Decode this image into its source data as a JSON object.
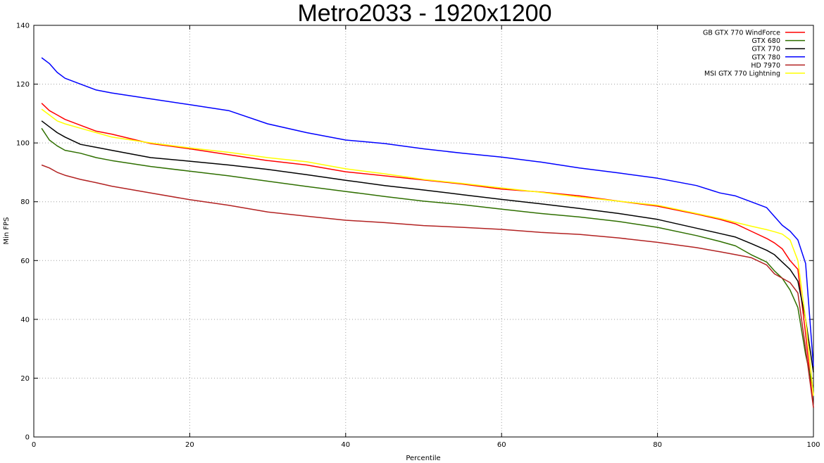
{
  "chart_data": {
    "type": "line",
    "title": "Metro2033 - 1920x1200",
    "xlabel": "Percentile",
    "ylabel": "Min FPS",
    "xlim": [
      0,
      100
    ],
    "ylim": [
      0,
      140
    ],
    "xticks": [
      0,
      20,
      40,
      60,
      80,
      100
    ],
    "yticks": [
      0,
      20,
      40,
      60,
      80,
      100,
      120,
      140
    ],
    "grid": true,
    "legend_position": "top-right",
    "x": [
      1,
      2,
      3,
      4,
      6,
      8,
      10,
      15,
      20,
      25,
      30,
      35,
      40,
      45,
      50,
      55,
      60,
      65,
      70,
      75,
      80,
      85,
      88,
      90,
      92,
      94,
      95,
      96,
      97,
      98,
      99,
      100
    ],
    "series": [
      {
        "name": "GB GTX 770 WindForce",
        "color": "#ff0000",
        "values": [
          113.5,
          111,
          109.5,
          108,
          106,
          104,
          103,
          99.8,
          98,
          96,
          94,
          92.5,
          90.2,
          88.8,
          87.4,
          86,
          84.3,
          83.3,
          82,
          80.2,
          78.5,
          75.8,
          74,
          72.5,
          70,
          67.5,
          66,
          64,
          60,
          57,
          35,
          10
        ]
      },
      {
        "name": "GTX 680",
        "color": "#2f6f00",
        "values": [
          105,
          101,
          99,
          97.5,
          96.5,
          95,
          94,
          92,
          90.4,
          88.8,
          87,
          85.2,
          83.5,
          81.8,
          80.2,
          79,
          77.5,
          76,
          74.8,
          73.3,
          71.3,
          68.5,
          66.5,
          65,
          62,
          59.5,
          56.5,
          54,
          50,
          44,
          28,
          16
        ]
      },
      {
        "name": "GTX 770",
        "color": "#000000",
        "values": [
          107.5,
          105.5,
          103.5,
          102,
          99.5,
          98.5,
          97.5,
          95,
          93.8,
          92.5,
          91,
          89.2,
          87.3,
          85.5,
          84,
          82.4,
          80.8,
          79.3,
          77.7,
          76,
          74,
          71,
          69.2,
          68,
          65.8,
          63.5,
          62,
          59.5,
          57,
          53,
          40,
          22
        ]
      },
      {
        "name": "GTX 780",
        "color": "#0000ff",
        "values": [
          129,
          127,
          124,
          122,
          120,
          118,
          117,
          115,
          113,
          111,
          106.5,
          103.5,
          101,
          99.8,
          98,
          96.5,
          95.2,
          93.5,
          91.5,
          89.8,
          88,
          85.5,
          83,
          82,
          80,
          78,
          75,
          72,
          70,
          67,
          59,
          24
        ]
      },
      {
        "name": "HD 7970",
        "color": "#b22222",
        "values": [
          92.5,
          91.5,
          90,
          89,
          87.6,
          86.5,
          85.3,
          83,
          80.7,
          78.8,
          76.5,
          75.1,
          73.7,
          72.9,
          71.9,
          71.3,
          70.6,
          69.6,
          68.9,
          67.7,
          66.2,
          64.4,
          63,
          62,
          61,
          58.5,
          55.5,
          54,
          52.5,
          49,
          30,
          10
        ]
      },
      {
        "name": "MSI GTX 770 Lightning",
        "color": "#ffff00",
        "values": [
          111.5,
          109.5,
          107.5,
          106.5,
          105,
          103.5,
          102,
          100,
          98.3,
          96.8,
          95,
          93.6,
          91.2,
          89.5,
          87.6,
          86.2,
          84.7,
          83.2,
          81.6,
          80.2,
          78.8,
          76,
          74.3,
          73,
          71.7,
          70.5,
          69.8,
          69,
          67,
          60,
          40,
          14
        ]
      }
    ]
  }
}
